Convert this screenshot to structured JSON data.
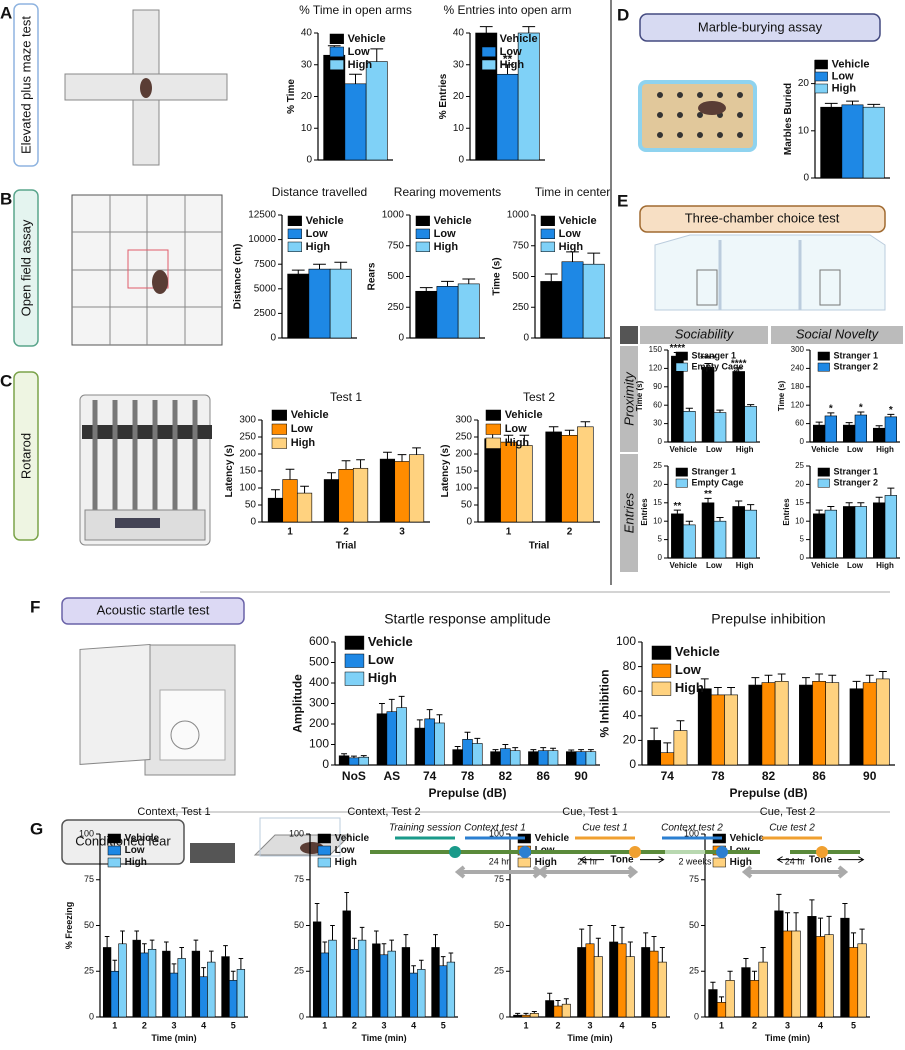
{
  "chart_data": [
    {
      "type": "bar",
      "title": "% Time in open arms",
      "ylabel": "% Time",
      "categories": [
        null
      ],
      "ylim": [
        0,
        40
      ],
      "yticks": [
        0,
        10,
        20,
        30,
        40
      ],
      "series": [
        {
          "name": "Vehicle",
          "color": "#000000",
          "values": [
            33
          ],
          "errors": [
            3
          ]
        },
        {
          "name": "Low",
          "color": "#1e88e5",
          "values": [
            24
          ],
          "errors": [
            3
          ]
        },
        {
          "name": "High",
          "color": "#7fd1f7",
          "values": [
            31
          ],
          "errors": [
            4
          ]
        }
      ]
    },
    {
      "type": "bar",
      "title": "% Entries into open arm",
      "ylabel": "% Entries",
      "categories": [
        null
      ],
      "ylim": [
        0,
        40
      ],
      "yticks": [
        0,
        10,
        20,
        30,
        40
      ],
      "series": [
        {
          "name": "Vehicle",
          "color": "#000000",
          "values": [
            40
          ],
          "errors": [
            2
          ]
        },
        {
          "name": "Low",
          "color": "#1e88e5",
          "values": [
            27
          ],
          "errors": [
            3
          ],
          "annotations": [
            "**"
          ]
        },
        {
          "name": "High",
          "color": "#7fd1f7",
          "values": [
            40
          ],
          "errors": [
            2
          ]
        }
      ]
    },
    {
      "type": "bar",
      "title": "Distance travelled",
      "ylabel": "Distance (cm)",
      "categories": [
        null
      ],
      "ylim": [
        0,
        12500
      ],
      "yticks": [
        0,
        2500,
        5000,
        7500,
        10000,
        12500
      ],
      "series": [
        {
          "name": "Vehicle",
          "color": "#000000",
          "values": [
            6500
          ],
          "errors": [
            400
          ]
        },
        {
          "name": "Low",
          "color": "#1e88e5",
          "values": [
            7000
          ],
          "errors": [
            500
          ]
        },
        {
          "name": "High",
          "color": "#7fd1f7",
          "values": [
            7000
          ],
          "errors": [
            700
          ]
        }
      ]
    },
    {
      "type": "bar",
      "title": "Rearing movements",
      "ylabel": "Rears",
      "categories": [
        null
      ],
      "ylim": [
        0,
        1000
      ],
      "yticks": [
        0,
        250,
        500,
        750,
        1000
      ],
      "series": [
        {
          "name": "Vehicle",
          "color": "#000000",
          "values": [
            380
          ],
          "errors": [
            30
          ]
        },
        {
          "name": "Low",
          "color": "#1e88e5",
          "values": [
            420
          ],
          "errors": [
            40
          ]
        },
        {
          "name": "High",
          "color": "#7fd1f7",
          "values": [
            440
          ],
          "errors": [
            40
          ]
        }
      ]
    },
    {
      "type": "bar",
      "title": "Time in center",
      "ylabel": "Time (s)",
      "categories": [
        null
      ],
      "ylim": [
        0,
        1000
      ],
      "yticks": [
        0,
        250,
        500,
        750,
        1000
      ],
      "series": [
        {
          "name": "Vehicle",
          "color": "#000000",
          "values": [
            460
          ],
          "errors": [
            60
          ]
        },
        {
          "name": "Low",
          "color": "#1e88e5",
          "values": [
            620
          ],
          "errors": [
            80
          ]
        },
        {
          "name": "High",
          "color": "#7fd1f7",
          "values": [
            600
          ],
          "errors": [
            90
          ]
        }
      ]
    },
    {
      "type": "bar",
      "title": "Test 1",
      "ylabel": "Latency (s)",
      "xlabel": "Trial",
      "categories": [
        "1",
        "2",
        "3"
      ],
      "ylim": [
        0,
        300
      ],
      "yticks": [
        0,
        50,
        100,
        150,
        200,
        250,
        300
      ],
      "series": [
        {
          "name": "Vehicle",
          "color": "#000000",
          "values": [
            70,
            125,
            185
          ],
          "errors": [
            25,
            20,
            20
          ]
        },
        {
          "name": "Low",
          "color": "#ff8c00",
          "values": [
            125,
            155,
            178
          ],
          "errors": [
            30,
            25,
            20
          ]
        },
        {
          "name": "High",
          "color": "#ffd27f",
          "values": [
            85,
            158,
            198
          ],
          "errors": [
            20,
            25,
            20
          ]
        }
      ]
    },
    {
      "type": "bar",
      "title": "Test 2",
      "ylabel": "Latency (s)",
      "xlabel": "Trial",
      "categories": [
        "1",
        "2"
      ],
      "ylim": [
        0,
        300
      ],
      "yticks": [
        0,
        50,
        100,
        150,
        200,
        250,
        300
      ],
      "series": [
        {
          "name": "Vehicle",
          "color": "#000000",
          "values": [
            245,
            265
          ],
          "errors": [
            20,
            15
          ]
        },
        {
          "name": "Low",
          "color": "#ff8c00",
          "values": [
            235,
            255
          ],
          "errors": [
            20,
            15
          ]
        },
        {
          "name": "High",
          "color": "#ffd27f",
          "values": [
            225,
            280
          ],
          "errors": [
            30,
            15
          ]
        }
      ]
    },
    {
      "type": "bar",
      "ylabel": "Marbles Buried",
      "categories": [
        null
      ],
      "ylim": [
        0,
        25
      ],
      "yticks": [
        0,
        10,
        20
      ],
      "series": [
        {
          "name": "Vehicle",
          "color": "#000000",
          "values": [
            15
          ],
          "errors": [
            0.8
          ]
        },
        {
          "name": "Low",
          "color": "#1e88e5",
          "values": [
            15.5
          ],
          "errors": [
            0.8
          ]
        },
        {
          "name": "High",
          "color": "#7fd1f7",
          "values": [
            15
          ],
          "errors": [
            0.6
          ]
        }
      ]
    },
    {
      "type": "bar",
      "ylabel": "Time (s)",
      "categories": [
        "Vehicle",
        "Low",
        "High"
      ],
      "ylim": [
        0,
        150
      ],
      "yticks": [
        0,
        30,
        60,
        90,
        120,
        150
      ],
      "series": [
        {
          "name": "Stranger 1",
          "color": "#000000",
          "values": [
            140,
            122,
            115
          ],
          "errors": [
            6,
            6,
            6
          ],
          "annotations": [
            "****",
            "****",
            "****"
          ]
        },
        {
          "name": "Empty Cage",
          "color": "#7fd1f7",
          "values": [
            50,
            48,
            58
          ],
          "errors": [
            5,
            4,
            3
          ]
        }
      ]
    },
    {
      "type": "bar",
      "ylabel": "Time (s)",
      "categories": [
        "Vehicle",
        "Low",
        "High"
      ],
      "ylim": [
        0,
        300
      ],
      "yticks": [
        0,
        60,
        120,
        180,
        240,
        300
      ],
      "series": [
        {
          "name": "Stranger 1",
          "color": "#000000",
          "values": [
            55,
            55,
            45
          ],
          "errors": [
            10,
            8,
            8
          ]
        },
        {
          "name": "Stranger 2",
          "color": "#1e88e5",
          "values": [
            85,
            88,
            82
          ],
          "errors": [
            10,
            10,
            8
          ],
          "annotations": [
            "*",
            "*",
            "*"
          ]
        }
      ]
    },
    {
      "type": "bar",
      "ylabel": "Entries",
      "categories": [
        "Vehicle",
        "Low",
        "High"
      ],
      "ylim": [
        0,
        25
      ],
      "yticks": [
        0,
        5,
        10,
        15,
        20,
        25
      ],
      "series": [
        {
          "name": "Stranger 1",
          "color": "#000000",
          "values": [
            12,
            15,
            14
          ],
          "errors": [
            1,
            1.2,
            1.5
          ],
          "annotations": [
            "**",
            "**",
            null
          ]
        },
        {
          "name": "Empty Cage",
          "color": "#7fd1f7",
          "values": [
            9,
            10,
            13
          ],
          "errors": [
            1,
            1,
            1.5
          ]
        }
      ]
    },
    {
      "type": "bar",
      "ylabel": "Entries",
      "categories": [
        "Vehicle",
        "Low",
        "High"
      ],
      "ylim": [
        0,
        25
      ],
      "yticks": [
        0,
        5,
        10,
        15,
        20,
        25
      ],
      "series": [
        {
          "name": "Stranger 1",
          "color": "#000000",
          "values": [
            12,
            14,
            15
          ],
          "errors": [
            1,
            1,
            1.5
          ]
        },
        {
          "name": "Stranger 2",
          "color": "#7fd1f7",
          "values": [
            13,
            14,
            17
          ],
          "errors": [
            1,
            1,
            2
          ]
        }
      ]
    },
    {
      "type": "bar",
      "title": "Startle response amplitude",
      "ylabel": "Amplitude",
      "xlabel": "Prepulse (dB)",
      "categories": [
        "NoS",
        "AS",
        "74",
        "78",
        "82",
        "86",
        "90"
      ],
      "ylim": [
        0,
        600
      ],
      "yticks": [
        0,
        100,
        200,
        300,
        400,
        500,
        600
      ],
      "series": [
        {
          "name": "Vehicle",
          "color": "#000000",
          "values": [
            45,
            250,
            180,
            75,
            65,
            65,
            65
          ],
          "errors": [
            10,
            50,
            40,
            15,
            10,
            10,
            8
          ]
        },
        {
          "name": "Low",
          "color": "#1e88e5",
          "values": [
            35,
            260,
            225,
            125,
            80,
            70,
            65
          ],
          "errors": [
            8,
            60,
            45,
            35,
            20,
            15,
            10
          ]
        },
        {
          "name": "High",
          "color": "#7fd1f7",
          "values": [
            38,
            280,
            205,
            105,
            70,
            70,
            65
          ],
          "errors": [
            8,
            55,
            40,
            25,
            15,
            12,
            10
          ]
        }
      ]
    },
    {
      "type": "bar",
      "title": "Prepulse inhibition",
      "ylabel": "% Inhibition",
      "xlabel": "Prepulse (dB)",
      "categories": [
        "74",
        "78",
        "82",
        "86",
        "90"
      ],
      "ylim": [
        0,
        100
      ],
      "yticks": [
        0,
        20,
        40,
        60,
        80,
        100
      ],
      "series": [
        {
          "name": "Vehicle",
          "color": "#000000",
          "values": [
            20,
            62,
            65,
            65,
            62
          ],
          "errors": [
            10,
            8,
            6,
            6,
            6
          ]
        },
        {
          "name": "Low",
          "color": "#ff8c00",
          "values": [
            10,
            57,
            67,
            68,
            67
          ],
          "errors": [
            8,
            6,
            6,
            6,
            6
          ]
        },
        {
          "name": "High",
          "color": "#ffd27f",
          "values": [
            28,
            57,
            68,
            67,
            70
          ],
          "errors": [
            8,
            6,
            6,
            6,
            6
          ]
        }
      ]
    },
    {
      "type": "bar",
      "title": "Context, Test 1",
      "ylabel": "% Freezing",
      "xlabel": "Time (min)",
      "categories": [
        "1",
        "2",
        "3",
        "4",
        "5"
      ],
      "ylim": [
        0,
        100
      ],
      "yticks": [
        0,
        25,
        50,
        75,
        100
      ],
      "series": [
        {
          "name": "Vehicle",
          "color": "#000000",
          "values": [
            38,
            42,
            36,
            36,
            33
          ],
          "errors": [
            6,
            5,
            5,
            6,
            6
          ]
        },
        {
          "name": "Low",
          "color": "#1e88e5",
          "values": [
            25,
            35,
            24,
            22,
            20
          ],
          "errors": [
            6,
            5,
            5,
            5,
            5
          ]
        },
        {
          "name": "High",
          "color": "#7fd1f7",
          "values": [
            40,
            37,
            32,
            30,
            26
          ],
          "errors": [
            7,
            5,
            6,
            6,
            6
          ]
        }
      ]
    },
    {
      "type": "bar",
      "title": "Context, Test 2",
      "xlabel": "Time (min)",
      "categories": [
        "1",
        "2",
        "3",
        "4",
        "5"
      ],
      "ylim": [
        0,
        100
      ],
      "yticks": [
        0,
        25,
        50,
        75,
        100
      ],
      "series": [
        {
          "name": "Vehicle",
          "color": "#000000",
          "values": [
            52,
            58,
            40,
            38,
            38
          ],
          "errors": [
            10,
            10,
            7,
            7,
            7
          ]
        },
        {
          "name": "Low",
          "color": "#1e88e5",
          "values": [
            35,
            37,
            34,
            24,
            28
          ],
          "errors": [
            6,
            6,
            6,
            4,
            5
          ]
        },
        {
          "name": "High",
          "color": "#7fd1f7",
          "values": [
            42,
            42,
            36,
            26,
            30
          ],
          "errors": [
            8,
            7,
            6,
            5,
            5
          ]
        }
      ]
    },
    {
      "type": "bar",
      "title": "Cue, Test 1",
      "xlabel": "Time (min)",
      "annotation": "Tone",
      "categories": [
        "1",
        "2",
        "3",
        "4",
        "5"
      ],
      "ylim": [
        0,
        100
      ],
      "yticks": [
        0,
        25,
        50,
        75,
        100
      ],
      "series": [
        {
          "name": "Vehicle",
          "color": "#000000",
          "values": [
            1,
            9,
            38,
            41,
            38
          ],
          "errors": [
            1,
            4,
            10,
            9,
            8
          ]
        },
        {
          "name": "Low",
          "color": "#ff8c00",
          "values": [
            1,
            6,
            40,
            40,
            36
          ],
          "errors": [
            1,
            3,
            10,
            9,
            8
          ]
        },
        {
          "name": "High",
          "color": "#ffd27f",
          "values": [
            2,
            7,
            33,
            33,
            30
          ],
          "errors": [
            1,
            3,
            10,
            8,
            8
          ]
        }
      ]
    },
    {
      "type": "bar",
      "title": "Cue, Test 2",
      "xlabel": "Time (min)",
      "annotation": "Tone",
      "categories": [
        "1",
        "2",
        "3",
        "4",
        "5"
      ],
      "ylim": [
        0,
        100
      ],
      "yticks": [
        0,
        25,
        50,
        75,
        100
      ],
      "series": [
        {
          "name": "Vehicle",
          "color": "#000000",
          "values": [
            15,
            27,
            58,
            55,
            54
          ],
          "errors": [
            4,
            5,
            9,
            9,
            8
          ]
        },
        {
          "name": "Low",
          "color": "#ff8c00",
          "values": [
            8,
            20,
            47,
            44,
            38
          ],
          "errors": [
            3,
            5,
            10,
            10,
            8
          ]
        },
        {
          "name": "High",
          "color": "#ffd27f",
          "values": [
            20,
            30,
            47,
            45,
            40
          ],
          "errors": [
            5,
            8,
            10,
            10,
            8
          ]
        }
      ]
    }
  ],
  "panels": [
    {
      "letter": "A",
      "label": "Elevated plus maze test"
    },
    {
      "letter": "B",
      "label": "Open field assay"
    },
    {
      "letter": "C",
      "label": "Rotarod"
    },
    {
      "letter": "D",
      "label": "Marble-burying assay"
    },
    {
      "letter": "E",
      "label": "Three-chamber choice test"
    },
    {
      "letter": "F",
      "label": "Acoustic startle test"
    },
    {
      "letter": "G",
      "label": "Conditioned fear"
    }
  ],
  "e_table": {
    "columns": [
      "Sociability",
      "Social Novelty"
    ],
    "rows": [
      "Proximity",
      "Entries"
    ]
  },
  "timeline": {
    "events": [
      "Training session",
      "Context test 1",
      "Cue test 1",
      "Context test 2",
      "Cue test 2"
    ],
    "intervals": [
      "24 hr",
      "24 hr",
      "2 weeks",
      "24 hr"
    ]
  }
}
